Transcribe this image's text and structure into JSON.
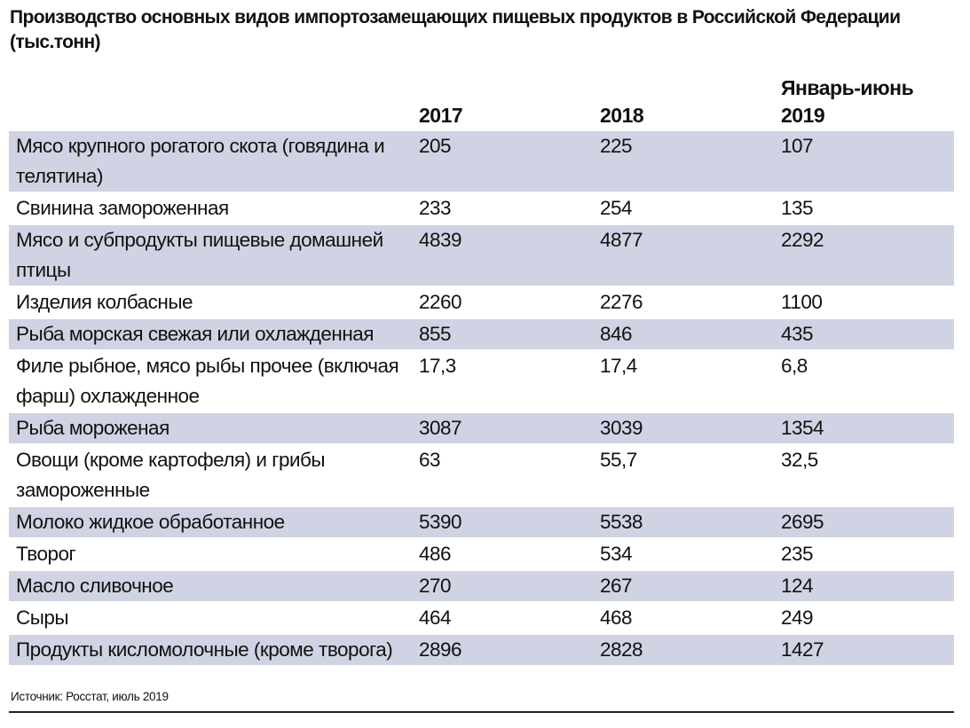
{
  "title": "Производство основных видов импортозамещающих пищевых продуктов в Российской Федерации (тыс.тонн)",
  "columns": [
    "",
    "2017",
    "2018",
    "Январь-июнь 2019"
  ],
  "rows": [
    {
      "name": "Мясо крупного рогатого скота (говядина и телятина)",
      "v2017": "205",
      "v2018": "225",
      "v2019h1": "107"
    },
    {
      "name": "Свинина замороженная",
      "v2017": "233",
      "v2018": "254",
      "v2019h1": "135"
    },
    {
      "name": "Мясо и субпродукты пищевые домашней птицы",
      "v2017": "4839",
      "v2018": "4877",
      "v2019h1": "2292"
    },
    {
      "name": "Изделия колбасные",
      "v2017": "2260",
      "v2018": "2276",
      "v2019h1": "1100"
    },
    {
      "name": "Рыба морская свежая или охлажденная",
      "v2017": "855",
      "v2018": "846",
      "v2019h1": "435"
    },
    {
      "name": "Филе рыбное, мясо рыбы прочее (включая фарш) охлажденное",
      "v2017": "17,3",
      "v2018": "17,4",
      "v2019h1": "6,8"
    },
    {
      "name": "Рыба мороженая",
      "v2017": "3087",
      "v2018": "3039",
      "v2019h1": "1354"
    },
    {
      "name": "Овощи (кроме картофеля) и грибы замороженные",
      "v2017": "63",
      "v2018": "55,7",
      "v2019h1": "32,5"
    },
    {
      "name": "Молоко жидкое обработанное",
      "v2017": "5390",
      "v2018": "5538",
      "v2019h1": "2695"
    },
    {
      "name": "Творог",
      "v2017": "486",
      "v2018": "534",
      "v2019h1": "235"
    },
    {
      "name": "Масло сливочное",
      "v2017": "270",
      "v2018": "267",
      "v2019h1": "124"
    },
    {
      "name": "Сыры",
      "v2017": "464",
      "v2018": "468",
      "v2019h1": "249"
    },
    {
      "name": "Продукты кисломолочные (кроме творога)",
      "v2017": "2896",
      "v2018": "2828",
      "v2019h1": "1427"
    }
  ],
  "source": "Источник: Росстат, июль 2019",
  "colors": {
    "row_shade": "#cfd3e3"
  }
}
